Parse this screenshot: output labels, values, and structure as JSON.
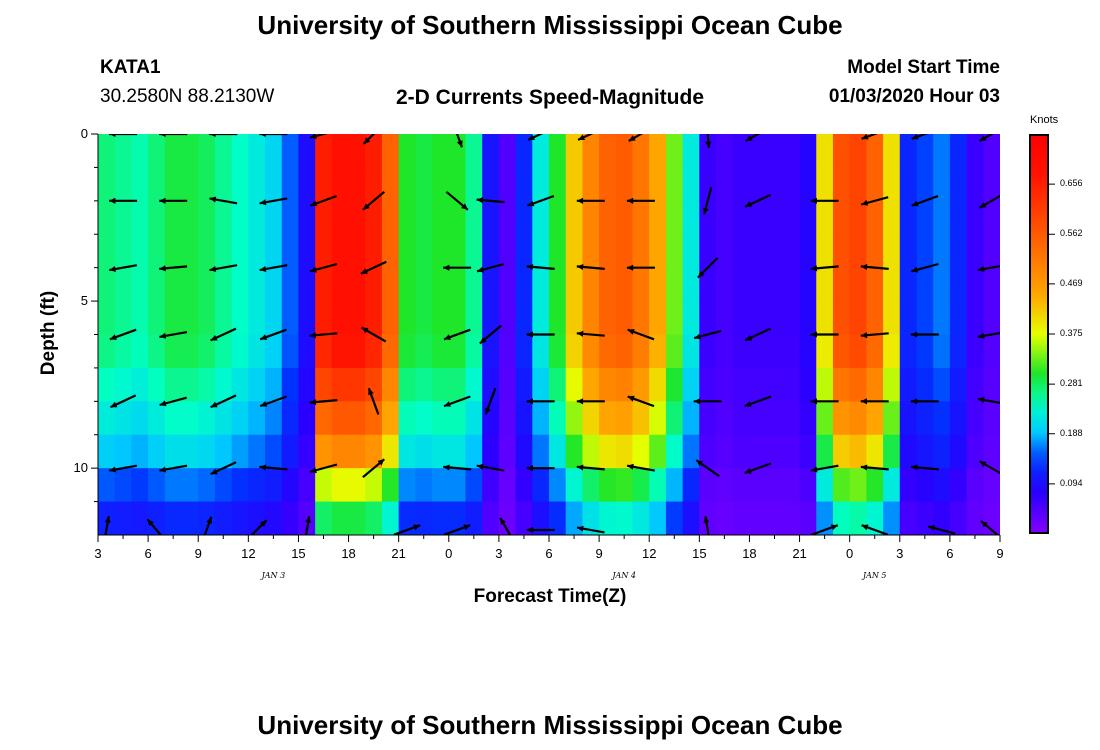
{
  "header": {
    "title": "University of Southern Mississippi Ocean Cube",
    "station": "KATA1",
    "coords": "30.2580N 88.2130W",
    "subtitle": "2-D Currents Speed-Magnitude",
    "model_label": "Model Start Time",
    "model_time": "01/03/2020 Hour 03"
  },
  "footer": {
    "title": "University of Southern Mississippi Ocean Cube"
  },
  "chart_data": {
    "type": "heatmap",
    "xlabel": "Forecast Time(Z)",
    "ylabel": "Depth (ft)",
    "x_ticks": [
      "3",
      "6",
      "9",
      "12",
      "15",
      "18",
      "21",
      "0",
      "3",
      "6",
      "9",
      "12",
      "15",
      "18",
      "21",
      "0",
      "3",
      "6",
      "9"
    ],
    "day_labels": [
      {
        "label": "JAN 3",
        "at_tick": 3.5
      },
      {
        "label": "JAN 4",
        "at_tick": 10.5
      },
      {
        "label": "JAN 5",
        "at_tick": 15.5
      }
    ],
    "y_ticks": [
      "0",
      "5",
      "10"
    ],
    "ylim": [
      0,
      12
    ],
    "hours": 54,
    "colorbar": {
      "units": "Knots",
      "ticks": [
        "0.656",
        "0.562",
        "0.469",
        "0.375",
        "0.281",
        "0.188",
        "0.094"
      ],
      "tick_values": [
        0.656,
        0.562,
        0.469,
        0.375,
        0.281,
        0.188,
        0.094
      ],
      "range": [
        0.0,
        0.75
      ]
    },
    "depths_ft": [
      0.5,
      1.5,
      2.5,
      3.5,
      4.5,
      5.5,
      6.5,
      7.5,
      8.5,
      9.5,
      10.5,
      11.5
    ],
    "surface_speed_profile": [
      0.27,
      0.26,
      0.25,
      0.27,
      0.29,
      0.29,
      0.28,
      0.26,
      0.24,
      0.22,
      0.2,
      0.15,
      0.09,
      0.66,
      0.69,
      0.69,
      0.66,
      0.55,
      0.3,
      0.29,
      0.3,
      0.3,
      0.26,
      0.1,
      0.04,
      0.12,
      0.22,
      0.3,
      0.42,
      0.5,
      0.55,
      0.56,
      0.52,
      0.45,
      0.33,
      0.22,
      0.06,
      0.05,
      0.06,
      0.06,
      0.06,
      0.06,
      0.08,
      0.4,
      0.58,
      0.6,
      0.55,
      0.4,
      0.12,
      0.14,
      0.16,
      0.12,
      0.06,
      0.04
    ],
    "depth_factor": [
      1.0,
      1.0,
      1.0,
      1.0,
      1.0,
      1.0,
      0.98,
      0.9,
      0.82,
      0.72,
      0.55,
      0.42
    ],
    "arrows": [
      {
        "hour": 1,
        "depth": 0,
        "angle": 180
      },
      {
        "hour": 4,
        "depth": 0,
        "angle": 180
      },
      {
        "hour": 7,
        "depth": 0,
        "angle": 180
      },
      {
        "hour": 10,
        "depth": 0,
        "angle": 180
      },
      {
        "hour": 13,
        "depth": 0,
        "angle": 195
      },
      {
        "hour": 16,
        "depth": 0,
        "angle": 225
      },
      {
        "hour": 21,
        "depth": 0,
        "angle": 290
      },
      {
        "hour": 26,
        "depth": 0,
        "angle": 205
      },
      {
        "hour": 29,
        "depth": 0,
        "angle": 205
      },
      {
        "hour": 32,
        "depth": 0,
        "angle": 210
      },
      {
        "hour": 36,
        "depth": 0,
        "angle": 275
      },
      {
        "hour": 39,
        "depth": 0,
        "angle": 210
      },
      {
        "hour": 46,
        "depth": 0,
        "angle": 200
      },
      {
        "hour": 49,
        "depth": 0,
        "angle": 200
      },
      {
        "hour": 53,
        "depth": 0,
        "angle": 210
      },
      {
        "hour": 1,
        "depth": 2,
        "angle": 180
      },
      {
        "hour": 4,
        "depth": 2,
        "angle": 180
      },
      {
        "hour": 7,
        "depth": 2,
        "angle": 170
      },
      {
        "hour": 10,
        "depth": 2,
        "angle": 190
      },
      {
        "hour": 13,
        "depth": 2,
        "angle": 200
      },
      {
        "hour": 16,
        "depth": 2,
        "angle": 220
      },
      {
        "hour": 21,
        "depth": 2,
        "angle": 320
      },
      {
        "hour": 23,
        "depth": 2,
        "angle": 175
      },
      {
        "hour": 26,
        "depth": 2,
        "angle": 200
      },
      {
        "hour": 29,
        "depth": 2,
        "angle": 180
      },
      {
        "hour": 32,
        "depth": 2,
        "angle": 180
      },
      {
        "hour": 36,
        "depth": 2,
        "angle": 255
      },
      {
        "hour": 39,
        "depth": 2,
        "angle": 205
      },
      {
        "hour": 43,
        "depth": 2,
        "angle": 180
      },
      {
        "hour": 46,
        "depth": 2,
        "angle": 195
      },
      {
        "hour": 49,
        "depth": 2,
        "angle": 200
      },
      {
        "hour": 53,
        "depth": 2,
        "angle": 210
      },
      {
        "hour": 1,
        "depth": 4,
        "angle": 190
      },
      {
        "hour": 4,
        "depth": 4,
        "angle": 185
      },
      {
        "hour": 7,
        "depth": 4,
        "angle": 190
      },
      {
        "hour": 10,
        "depth": 4,
        "angle": 190
      },
      {
        "hour": 13,
        "depth": 4,
        "angle": 195
      },
      {
        "hour": 16,
        "depth": 4,
        "angle": 205
      },
      {
        "hour": 21,
        "depth": 4,
        "angle": 180
      },
      {
        "hour": 23,
        "depth": 4,
        "angle": 195
      },
      {
        "hour": 26,
        "depth": 4,
        "angle": 175
      },
      {
        "hour": 29,
        "depth": 4,
        "angle": 175
      },
      {
        "hour": 32,
        "depth": 4,
        "angle": 180
      },
      {
        "hour": 36,
        "depth": 4,
        "angle": 225
      },
      {
        "hour": 43,
        "depth": 4,
        "angle": 185
      },
      {
        "hour": 46,
        "depth": 4,
        "angle": 175
      },
      {
        "hour": 49,
        "depth": 4,
        "angle": 195
      },
      {
        "hour": 53,
        "depth": 4,
        "angle": 190
      },
      {
        "hour": 1,
        "depth": 6,
        "angle": 200
      },
      {
        "hour": 4,
        "depth": 6,
        "angle": 190
      },
      {
        "hour": 7,
        "depth": 6,
        "angle": 205
      },
      {
        "hour": 10,
        "depth": 6,
        "angle": 200
      },
      {
        "hour": 13,
        "depth": 6,
        "angle": 185
      },
      {
        "hour": 16,
        "depth": 6,
        "angle": 150
      },
      {
        "hour": 21,
        "depth": 6,
        "angle": 200
      },
      {
        "hour": 23,
        "depth": 6,
        "angle": 220
      },
      {
        "hour": 26,
        "depth": 6,
        "angle": 180
      },
      {
        "hour": 29,
        "depth": 6,
        "angle": 175
      },
      {
        "hour": 32,
        "depth": 6,
        "angle": 160
      },
      {
        "hour": 36,
        "depth": 6,
        "angle": 195
      },
      {
        "hour": 39,
        "depth": 6,
        "angle": 205
      },
      {
        "hour": 43,
        "depth": 6,
        "angle": 180
      },
      {
        "hour": 46,
        "depth": 6,
        "angle": 185
      },
      {
        "hour": 49,
        "depth": 6,
        "angle": 180
      },
      {
        "hour": 53,
        "depth": 6,
        "angle": 190
      },
      {
        "hour": 1,
        "depth": 8,
        "angle": 205
      },
      {
        "hour": 4,
        "depth": 8,
        "angle": 195
      },
      {
        "hour": 7,
        "depth": 8,
        "angle": 205
      },
      {
        "hour": 10,
        "depth": 8,
        "angle": 200
      },
      {
        "hour": 13,
        "depth": 8,
        "angle": 185
      },
      {
        "hour": 16,
        "depth": 8,
        "angle": 110
      },
      {
        "hour": 21,
        "depth": 8,
        "angle": 200
      },
      {
        "hour": 23,
        "depth": 8,
        "angle": 250
      },
      {
        "hour": 26,
        "depth": 8,
        "angle": 180
      },
      {
        "hour": 29,
        "depth": 8,
        "angle": 180
      },
      {
        "hour": 32,
        "depth": 8,
        "angle": 160
      },
      {
        "hour": 36,
        "depth": 8,
        "angle": 180
      },
      {
        "hour": 39,
        "depth": 8,
        "angle": 200
      },
      {
        "hour": 43,
        "depth": 8,
        "angle": 180
      },
      {
        "hour": 46,
        "depth": 8,
        "angle": 180
      },
      {
        "hour": 49,
        "depth": 8,
        "angle": 180
      },
      {
        "hour": 53,
        "depth": 8,
        "angle": 170
      },
      {
        "hour": 1,
        "depth": 10,
        "angle": 190
      },
      {
        "hour": 4,
        "depth": 10,
        "angle": 190
      },
      {
        "hour": 7,
        "depth": 10,
        "angle": 205
      },
      {
        "hour": 10,
        "depth": 10,
        "angle": 175
      },
      {
        "hour": 13,
        "depth": 10,
        "angle": 195
      },
      {
        "hour": 16,
        "depth": 10,
        "angle": 40
      },
      {
        "hour": 21,
        "depth": 10,
        "angle": 175
      },
      {
        "hour": 23,
        "depth": 10,
        "angle": 170
      },
      {
        "hour": 26,
        "depth": 10,
        "angle": 180
      },
      {
        "hour": 29,
        "depth": 10,
        "angle": 175
      },
      {
        "hour": 32,
        "depth": 10,
        "angle": 170
      },
      {
        "hour": 36,
        "depth": 10,
        "angle": 145
      },
      {
        "hour": 39,
        "depth": 10,
        "angle": 200
      },
      {
        "hour": 43,
        "depth": 10,
        "angle": 190
      },
      {
        "hour": 46,
        "depth": 10,
        "angle": 175
      },
      {
        "hour": 49,
        "depth": 10,
        "angle": 175
      },
      {
        "hour": 53,
        "depth": 10,
        "angle": 150
      },
      {
        "hour": 0,
        "depth": 11.85,
        "angle": 80
      },
      {
        "hour": 3,
        "depth": 11.85,
        "angle": 130
      },
      {
        "hour": 6,
        "depth": 11.85,
        "angle": 70
      },
      {
        "hour": 9,
        "depth": 11.85,
        "angle": 45
      },
      {
        "hour": 12,
        "depth": 11.85,
        "angle": 80
      },
      {
        "hour": 18,
        "depth": 11.85,
        "angle": 20
      },
      {
        "hour": 21,
        "depth": 11.85,
        "angle": 20
      },
      {
        "hour": 24,
        "depth": 11.85,
        "angle": 120
      },
      {
        "hour": 26,
        "depth": 11.85,
        "angle": 180
      },
      {
        "hour": 29,
        "depth": 11.85,
        "angle": 170
      },
      {
        "hour": 36,
        "depth": 11.85,
        "angle": 100
      },
      {
        "hour": 43,
        "depth": 11.85,
        "angle": 20
      },
      {
        "hour": 46,
        "depth": 11.85,
        "angle": 160
      },
      {
        "hour": 50,
        "depth": 11.85,
        "angle": 165
      },
      {
        "hour": 53,
        "depth": 11.85,
        "angle": 140
      }
    ]
  }
}
